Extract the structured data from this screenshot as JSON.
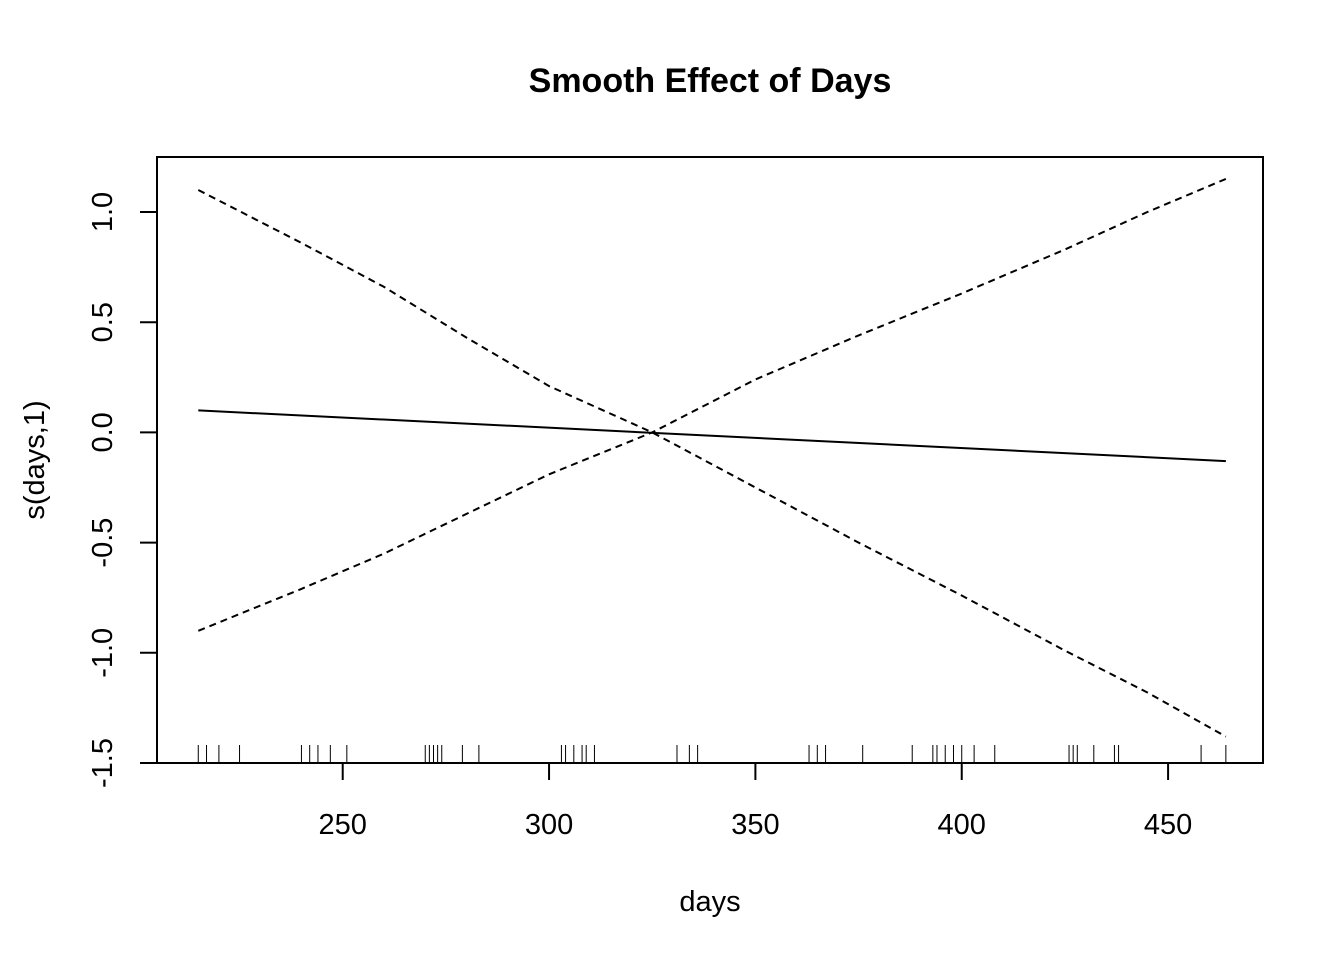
{
  "chart_data": {
    "type": "line",
    "title": "Smooth Effect of Days",
    "xlabel": "days",
    "ylabel": "s(days,1)",
    "xlim": [
      205,
      473
    ],
    "ylim": [
      -1.5,
      1.25
    ],
    "x_ticks": [
      250,
      300,
      350,
      400,
      450
    ],
    "x_tick_labels": [
      "250",
      "300",
      "350",
      "400",
      "450"
    ],
    "y_ticks": [
      -1.5,
      -1.0,
      -0.5,
      0.0,
      0.5,
      1.0
    ],
    "y_tick_labels": [
      "-1.5",
      "-1.0",
      "-0.5",
      "0.0",
      "0.5",
      "1.0"
    ],
    "grid": false,
    "series": [
      {
        "values": [
          [
            215,
            0.1
          ],
          [
            464,
            -0.13
          ]
        ],
        "style": "solid"
      },
      {
        "values": [
          [
            215,
            1.1
          ],
          [
            240,
            0.86
          ],
          [
            260,
            0.66
          ],
          [
            280,
            0.43
          ],
          [
            300,
            0.21
          ],
          [
            325,
            0.0
          ],
          [
            350,
            -0.25
          ],
          [
            375,
            -0.5
          ],
          [
            400,
            -0.74
          ],
          [
            425,
            -0.99
          ],
          [
            445,
            -1.18
          ],
          [
            464,
            -1.38
          ]
        ],
        "style": "dashed"
      },
      {
        "values": [
          [
            215,
            -0.9
          ],
          [
            240,
            -0.71
          ],
          [
            260,
            -0.55
          ],
          [
            280,
            -0.37
          ],
          [
            300,
            -0.19
          ],
          [
            325,
            0.0
          ],
          [
            350,
            0.24
          ],
          [
            375,
            0.44
          ],
          [
            400,
            0.63
          ],
          [
            425,
            0.83
          ],
          [
            445,
            1.0
          ],
          [
            464,
            1.15
          ]
        ],
        "style": "dashed"
      }
    ],
    "rug": [
      215,
      217,
      220,
      225,
      240,
      242,
      244,
      247,
      251,
      270,
      271,
      272,
      273,
      274,
      279,
      283,
      303,
      304,
      306,
      308,
      309,
      311,
      331,
      334,
      336,
      363,
      365,
      367,
      376,
      388,
      393,
      394,
      396,
      398,
      400,
      403,
      408,
      426,
      427,
      428,
      432,
      437,
      438,
      458,
      464
    ]
  }
}
